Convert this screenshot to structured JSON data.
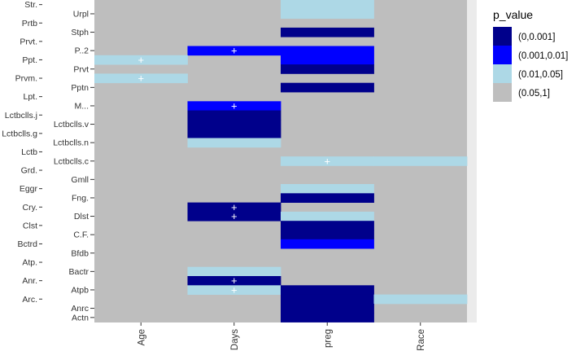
{
  "chart_data": {
    "type": "heatmap",
    "title": "",
    "xlabel": "",
    "ylabel": "",
    "x_categories": [
      "Age",
      "Days",
      "preg",
      "Race"
    ],
    "y_rows_top_to_bottom": [
      "Str.",
      "Urpl",
      "Prtb",
      "Stph",
      "Prvt.",
      "P..2",
      "Ppt.",
      "Prvt",
      "Prvm.",
      "Pptn",
      "Lpt.",
      "M...",
      "Lctbclls.j",
      "Lctbclls.v",
      "Lctbclls.g",
      "Lctbclls.n",
      "Lctb",
      "Lctbclls.c",
      "Grd.",
      "Gmll",
      "Eggr",
      "Fng.",
      "Cry.",
      "Dlst",
      "Clst",
      "C.F.",
      "Bctrd",
      "Bfdb",
      "Atp.",
      "Bactr",
      "Anr.",
      "Atpb",
      "Arc.",
      "Anrc",
      "Actn"
    ],
    "y_labels_outer": [
      "Str.",
      "Prtb",
      "Prvt.",
      "Ppt.",
      "Prvm.",
      "Lpt.",
      "Lctbclls.j",
      "Lctbclls.g",
      "Lctb",
      "Grd.",
      "Eggr",
      "Cry.",
      "Clst",
      "Bctrd",
      "Atp.",
      "Anr.",
      "Arc."
    ],
    "y_labels_inner": [
      "Urpl",
      "Stph",
      "P..2",
      "Prvt",
      "Pptn",
      "M...",
      "Lctbclls.v",
      "Lctbclls.n",
      "Lctbclls.c",
      "Gmll",
      "Fng.",
      "Dlst",
      "C.F.",
      "Bfdb",
      "Bactr",
      "Atpb",
      "Anrc",
      "Actn"
    ],
    "legend": {
      "title": "p_value",
      "position": "right",
      "entries": [
        {
          "label": "(0,0.001]",
          "color": "#00008b"
        },
        {
          "label": "(0.001,0.01]",
          "color": "#0000ff"
        },
        {
          "label": "(0.01,0.05]",
          "color": "#add8e6"
        },
        {
          "label": "(0.05,1]",
          "color": "#bebebe"
        }
      ]
    },
    "default_bin": "(0.05,1]",
    "cells": [
      {
        "row": "Str.",
        "col": "preg",
        "bin": "(0.01,0.05]"
      },
      {
        "row": "Urpl",
        "col": "preg",
        "bin": "(0.01,0.05]"
      },
      {
        "row": "Stph",
        "col": "preg",
        "bin": "(0,0.001]"
      },
      {
        "row": "P..2",
        "col": "Days",
        "bin": "(0.001,0.01]",
        "marker": "+"
      },
      {
        "row": "P..2",
        "col": "preg",
        "bin": "(0.001,0.01]"
      },
      {
        "row": "Ppt.",
        "col": "preg",
        "bin": "(0.001,0.01]"
      },
      {
        "row": "Ppt.",
        "col": "Age",
        "bin": "(0.01,0.05]",
        "marker": "+"
      },
      {
        "row": "Prvt",
        "col": "preg",
        "bin": "(0,0.001]"
      },
      {
        "row": "Prvm.",
        "col": "Age",
        "bin": "(0.01,0.05]",
        "marker": "+"
      },
      {
        "row": "Pptn",
        "col": "preg",
        "bin": "(0,0.001]"
      },
      {
        "row": "M...",
        "col": "Days",
        "bin": "(0.001,0.01]",
        "marker": "+"
      },
      {
        "row": "Lctbclls.j",
        "col": "Days",
        "bin": "(0,0.001]"
      },
      {
        "row": "Lctbclls.v",
        "col": "Days",
        "bin": "(0,0.001]"
      },
      {
        "row": "Lctbclls.g",
        "col": "Days",
        "bin": "(0,0.001]"
      },
      {
        "row": "Lctbclls.n",
        "col": "Days",
        "bin": "(0.01,0.05]"
      },
      {
        "row": "Lctbclls.c",
        "col": "preg",
        "bin": "(0.01,0.05]",
        "marker": "+"
      },
      {
        "row": "Lctbclls.c",
        "col": "Race",
        "bin": "(0.01,0.05]"
      },
      {
        "row": "Eggr",
        "col": "preg",
        "bin": "(0.01,0.05]"
      },
      {
        "row": "Fng.",
        "col": "preg",
        "bin": "(0,0.001]"
      },
      {
        "row": "Cry.",
        "col": "Days",
        "bin": "(0,0.001]",
        "marker": "+"
      },
      {
        "row": "Dlst",
        "col": "Days",
        "bin": "(0,0.001]",
        "marker": "+"
      },
      {
        "row": "Dlst",
        "col": "preg",
        "bin": "(0.01,0.05]"
      },
      {
        "row": "Clst",
        "col": "preg",
        "bin": "(0,0.001]"
      },
      {
        "row": "C.F.",
        "col": "preg",
        "bin": "(0,0.001]"
      },
      {
        "row": "Bctrd",
        "col": "preg",
        "bin": "(0.001,0.01]"
      },
      {
        "row": "Bactr",
        "col": "Days",
        "bin": "(0.01,0.05]"
      },
      {
        "row": "Anr.",
        "col": "Days",
        "bin": "(0,0.001]",
        "marker": "+"
      },
      {
        "row": "Atpb",
        "col": "Days",
        "bin": "(0.01,0.05]",
        "marker": "+"
      },
      {
        "row": "Atpb",
        "col": "preg",
        "bin": "(0,0.001]"
      },
      {
        "row": "Arc.",
        "col": "preg",
        "bin": "(0,0.001]"
      },
      {
        "row": "Arc.",
        "col": "Race",
        "bin": "(0.01,0.05]"
      },
      {
        "row": "Anrc",
        "col": "preg",
        "bin": "(0,0.001]"
      },
      {
        "row": "Actn",
        "col": "preg",
        "bin": "(0,0.001]"
      }
    ],
    "grid": true
  }
}
